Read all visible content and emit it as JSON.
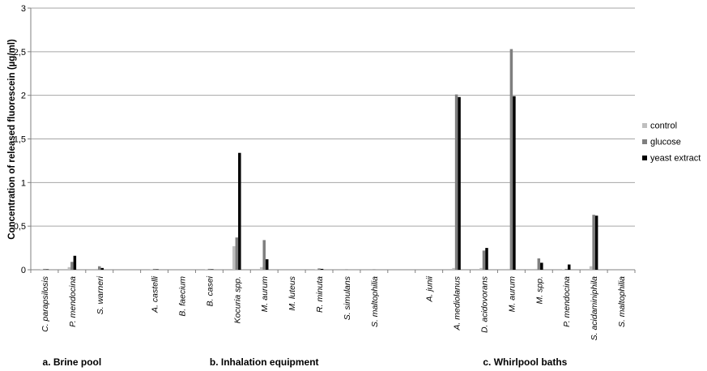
{
  "chart_data": {
    "type": "bar",
    "ylabel": "Concentration of released fluorescein (µg/ml)",
    "ylim": [
      0,
      3
    ],
    "yticks": [
      "0",
      "0,5",
      "1",
      "1,5",
      "2",
      "2,5",
      "3"
    ],
    "ytick_values": [
      0,
      0.5,
      1,
      1.5,
      2,
      2.5,
      3
    ],
    "grid": true,
    "legend_position": "right",
    "categories": [
      "C. parapsilosis",
      "P. mendocina",
      "S. warneri",
      "",
      "A. castelli",
      "B. faecium",
      "B. casei",
      "Kocuria spp.",
      "M. aurum",
      "M. luteus",
      "R. minuta",
      "S. simulans",
      "S. maltophilia",
      "",
      "A. junii",
      "A. mediolanus",
      "D. acidovorans",
      "M. aurum",
      "M. spp.",
      "P. mendocina",
      "S. acidaminiphila",
      "S. maltophilia"
    ],
    "groups": [
      {
        "label": "a. Brine pool",
        "first": 0,
        "last": 2
      },
      {
        "label": "b. Inhalation equipment",
        "first": 4,
        "last": 12
      },
      {
        "label": "c.  Whirlpool baths",
        "first": 14,
        "last": 21
      }
    ],
    "series": [
      {
        "name": "control",
        "color": "#bfbfbf",
        "values": [
          0.005,
          0.03,
          0.01,
          0,
          0.005,
          0,
          0.005,
          0.27,
          0.03,
          0,
          0.005,
          0,
          0,
          0,
          0,
          0.02,
          0.02,
          0.01,
          0.01,
          0.005,
          0.04,
          0
        ]
      },
      {
        "name": "glucose",
        "color": "#7f7f7f",
        "values": [
          0.01,
          0.09,
          0.04,
          0,
          0.01,
          0,
          0.01,
          0.37,
          0.34,
          0,
          0.015,
          0.005,
          0.005,
          0,
          0,
          2.01,
          0.22,
          2.53,
          0.13,
          0.01,
          0.63,
          0
        ]
      },
      {
        "name": "yeast extract",
        "color": "#000000",
        "values": [
          0.005,
          0.16,
          0.02,
          0,
          0.005,
          0,
          0.005,
          1.34,
          0.12,
          0,
          0.01,
          0,
          0,
          0,
          0,
          1.98,
          0.25,
          1.99,
          0.08,
          0.06,
          0.62,
          0
        ]
      }
    ]
  }
}
